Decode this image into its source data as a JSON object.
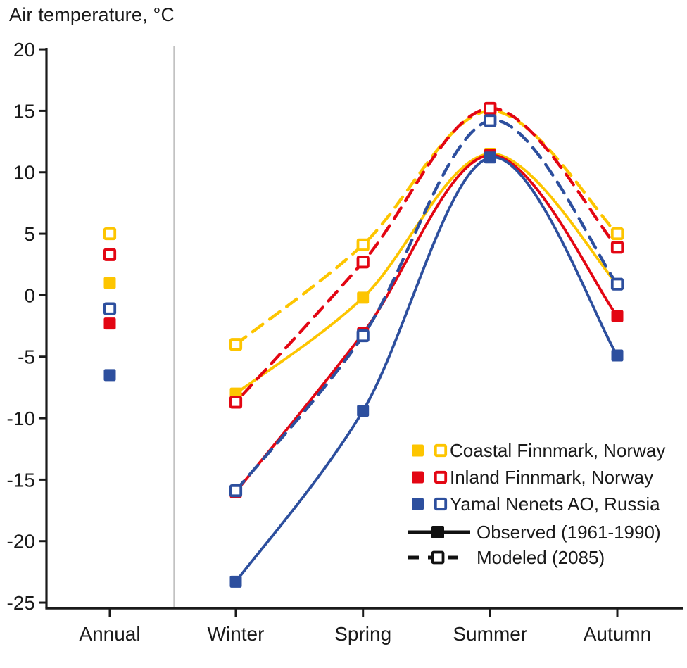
{
  "chart_data": {
    "type": "line",
    "title": "Air temperature, °C",
    "categories": [
      "Annual",
      "Winter",
      "Spring",
      "Summer",
      "Autumn"
    ],
    "y_axis": {
      "min": -25,
      "max": 20,
      "tick_step": 5,
      "ticks": [
        20,
        15,
        10,
        5,
        0,
        -5,
        -10,
        -15,
        -20,
        -25
      ]
    },
    "grid": "off",
    "legend_position": "inside-right-bottom",
    "colors": {
      "coastal_finnmark": "#FDC500",
      "inland_finnmark": "#E30613",
      "yamal_nenets": "#2D4F9E",
      "axis": "#1a1a1a",
      "annual_separator": "#c2c2c2",
      "legend_line": "#111111"
    },
    "series": [
      {
        "region": "Coastal Finnmark, Norway",
        "scenario": "Observed (1961-1990)",
        "color": "#FDC500",
        "line_style": "solid",
        "marker": "filled",
        "values": [
          1.0,
          -8.0,
          -0.2,
          11.5,
          0.9
        ]
      },
      {
        "region": "Inland Finnmark, Norway",
        "scenario": "Observed (1961-1990)",
        "color": "#E30613",
        "line_style": "solid",
        "marker": "filled",
        "values": [
          -2.3,
          -16.0,
          -3.1,
          11.4,
          -1.7
        ]
      },
      {
        "region": "Yamal Nenets AO, Russia",
        "scenario": "Observed (1961-1990)",
        "color": "#2D4F9E",
        "line_style": "solid",
        "marker": "filled",
        "values": [
          -6.5,
          -23.3,
          -9.4,
          11.2,
          -4.9
        ]
      },
      {
        "region": "Coastal Finnmark, Norway",
        "scenario": "Modeled (2085)",
        "color": "#FDC500",
        "line_style": "dashed",
        "marker": "open",
        "values": [
          5.0,
          -4.0,
          4.1,
          15.0,
          5.0
        ]
      },
      {
        "region": "Inland Finnmark, Norway",
        "scenario": "Modeled (2085)",
        "color": "#E30613",
        "line_style": "dashed",
        "marker": "open",
        "values": [
          3.3,
          -8.7,
          2.7,
          15.2,
          3.9
        ]
      },
      {
        "region": "Yamal Nenets AO, Russia",
        "scenario": "Modeled (2085)",
        "color": "#2D4F9E",
        "line_style": "dashed",
        "marker": "open",
        "values": [
          -1.1,
          -15.9,
          -3.3,
          14.2,
          0.9
        ]
      }
    ],
    "legend": {
      "regions": [
        {
          "label": "Coastal Finnmark, Norway",
          "color": "#FDC500"
        },
        {
          "label": "Inland Finnmark, Norway",
          "color": "#E30613"
        },
        {
          "label": "Yamal Nenets AO, Russia",
          "color": "#2D4F9E"
        }
      ],
      "scenarios": [
        {
          "label": "Observed (1961-1990)",
          "line_style": "solid",
          "marker": "filled"
        },
        {
          "label": "Modeled (2085)",
          "line_style": "dashed",
          "marker": "open"
        }
      ]
    }
  }
}
